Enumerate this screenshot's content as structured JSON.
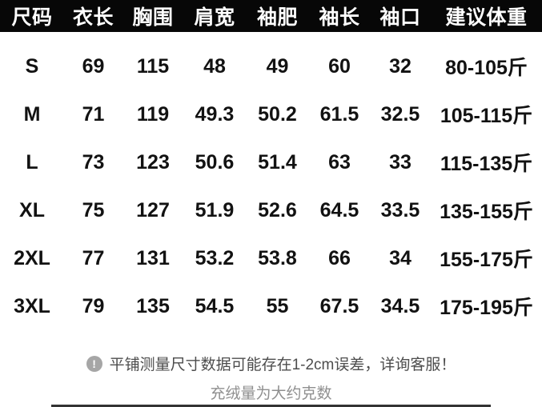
{
  "colors": {
    "header_bg": "#070707",
    "header_text": "#ffffff",
    "body_text": "#121212",
    "note_primary": "#4d4d4d",
    "note_secondary": "#8f8f8f",
    "icon_bg": "#a6a6a6",
    "page_bg": "#ffffff"
  },
  "chart_data": {
    "type": "table",
    "title": "服装尺码表",
    "columns": [
      "尺码",
      "衣长",
      "胸围",
      "肩宽",
      "袖肥",
      "袖长",
      "袖口",
      "建议体重"
    ],
    "rows": [
      [
        "S",
        "69",
        "115",
        "48",
        "49",
        "60",
        "32",
        "80-105斤"
      ],
      [
        "M",
        "71",
        "119",
        "49.3",
        "50.2",
        "61.5",
        "32.5",
        "105-115斤"
      ],
      [
        "L",
        "73",
        "123",
        "50.6",
        "51.4",
        "63",
        "33",
        "115-135斤"
      ],
      [
        "XL",
        "75",
        "127",
        "51.9",
        "52.6",
        "64.5",
        "33.5",
        "135-155斤"
      ],
      [
        "2XL",
        "77",
        "131",
        "53.2",
        "53.8",
        "66",
        "34",
        "155-175斤"
      ],
      [
        "3XL",
        "79",
        "135",
        "54.5",
        "55",
        "67.5",
        "34.5",
        "175-195斤"
      ]
    ]
  },
  "notes": {
    "icon_glyph": "!",
    "line1": "平铺测量尺寸数据可能存在1-2cm误差，详询客服！",
    "line2": "充绒量为大约克数"
  }
}
